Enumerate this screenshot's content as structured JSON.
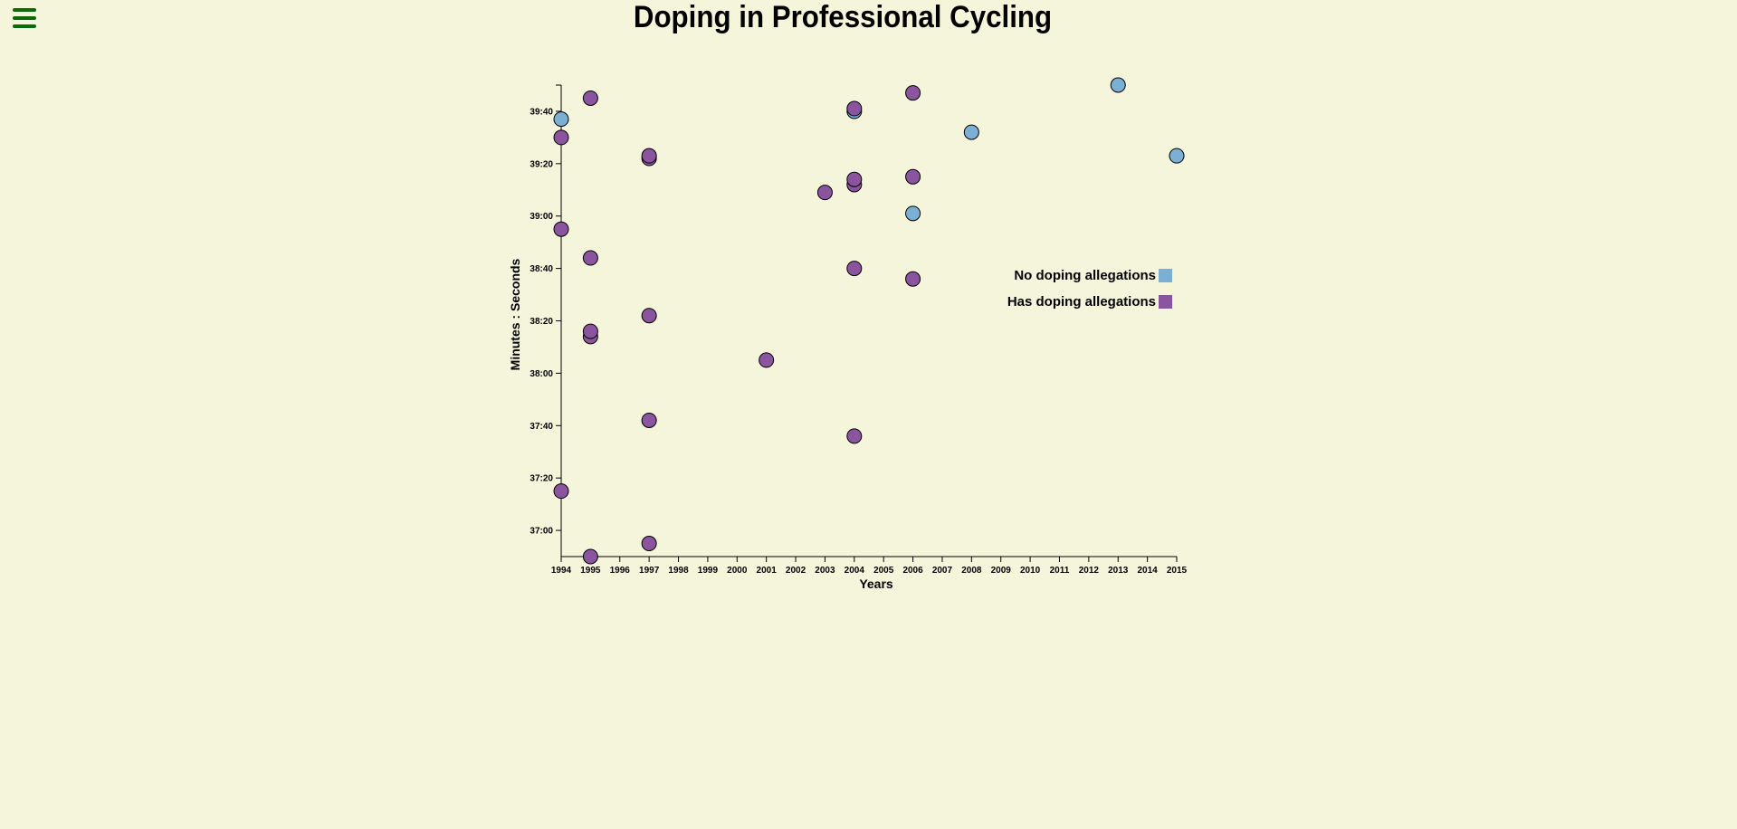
{
  "menu": {
    "icon": "hamburger-menu-icon",
    "color": "#0a6b0a"
  },
  "title": "Doping in Professional Cycling",
  "colors": {
    "background": "#f5f5dc",
    "no_doping": "#7bafd4",
    "doping": "#8a559e",
    "marker_stroke": "#000000"
  },
  "chart_data": {
    "type": "scatter",
    "xlabel": "Years",
    "ylabel": "Minutes : Seconds",
    "xlim": [
      1994,
      2015
    ],
    "ylim": [
      "36:50",
      "39:50"
    ],
    "x_ticks": [
      "1994",
      "1995",
      "1996",
      "1997",
      "1998",
      "1999",
      "2000",
      "2001",
      "2002",
      "2003",
      "2004",
      "2005",
      "2006",
      "2007",
      "2008",
      "2009",
      "2010",
      "2011",
      "2012",
      "2013",
      "2014",
      "2015"
    ],
    "y_ticks": [
      "37:00",
      "37:20",
      "37:40",
      "38:00",
      "38:20",
      "38:40",
      "39:00",
      "39:20",
      "39:40"
    ],
    "legend": {
      "position": "right",
      "entries": [
        {
          "label": "No doping allegations",
          "key": "no"
        },
        {
          "label": "Has doping allegations",
          "key": "yes"
        }
      ]
    },
    "series": [
      {
        "key": "no",
        "points": [
          {
            "x": 1994,
            "y": "39:37"
          },
          {
            "x": 2004,
            "y": "39:40"
          },
          {
            "x": 2006,
            "y": "39:01"
          },
          {
            "x": 2008,
            "y": "39:32"
          },
          {
            "x": 2013,
            "y": "39:50"
          },
          {
            "x": 2015,
            "y": "39:23"
          }
        ]
      },
      {
        "key": "yes",
        "points": [
          {
            "x": 1994,
            "y": "39:30"
          },
          {
            "x": 1994,
            "y": "38:55"
          },
          {
            "x": 1994,
            "y": "37:15"
          },
          {
            "x": 1995,
            "y": "39:45"
          },
          {
            "x": 1995,
            "y": "38:44"
          },
          {
            "x": 1995,
            "y": "38:14"
          },
          {
            "x": 1995,
            "y": "38:16"
          },
          {
            "x": 1995,
            "y": "36:50"
          },
          {
            "x": 1997,
            "y": "39:22"
          },
          {
            "x": 1997,
            "y": "39:23"
          },
          {
            "x": 1997,
            "y": "38:22"
          },
          {
            "x": 1997,
            "y": "37:42"
          },
          {
            "x": 1997,
            "y": "36:55"
          },
          {
            "x": 2001,
            "y": "38:05"
          },
          {
            "x": 2003,
            "y": "39:09"
          },
          {
            "x": 2004,
            "y": "39:41"
          },
          {
            "x": 2004,
            "y": "39:12"
          },
          {
            "x": 2004,
            "y": "39:14"
          },
          {
            "x": 2004,
            "y": "38:40"
          },
          {
            "x": 2004,
            "y": "37:36"
          },
          {
            "x": 2006,
            "y": "39:47"
          },
          {
            "x": 2006,
            "y": "39:15"
          },
          {
            "x": 2006,
            "y": "38:36"
          }
        ]
      }
    ]
  }
}
